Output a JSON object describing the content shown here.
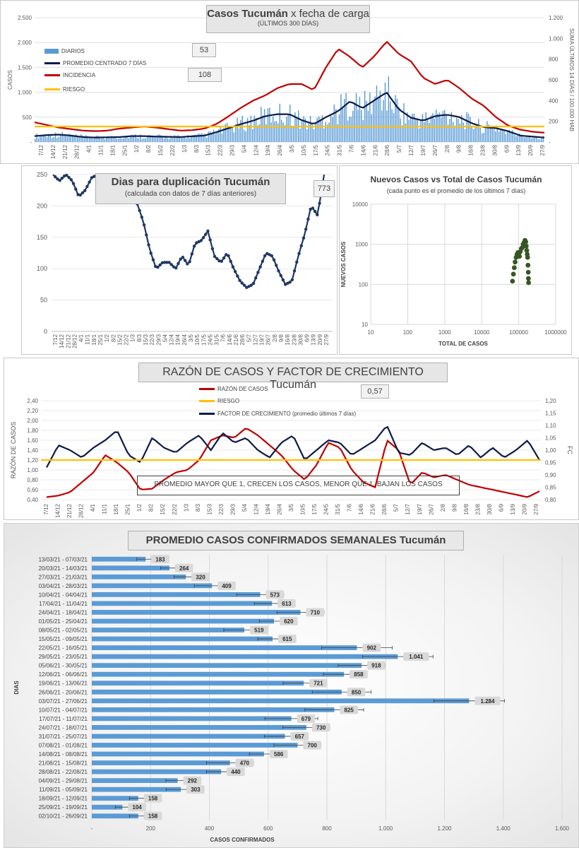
{
  "panel1": {
    "title_main": "Casos Tucumán",
    "title_rest": "x fecha de carga",
    "subtitle": "(ÚLTIMOS 300 DÍAS)",
    "ylabel_left": "CASOS",
    "ylabel_right": "SUMA ÚLTIMOS 14 DÍAS / 100.000 HAB",
    "value_box_1": "53",
    "value_box_2": "108",
    "legend": [
      {
        "label": "DIARIOS",
        "color": "#5b9bd5"
      },
      {
        "label": "PROMEDIO CENTRADO 7 DÍAS",
        "color": "#0d1b4a"
      },
      {
        "label": "INCIDENCIA",
        "color": "#c00000"
      },
      {
        "label": "RIESGO",
        "color": "#ffc000"
      }
    ]
  },
  "panel2": {
    "title_main": "Dias para duplicación Tucumán",
    "subtitle": "(calculada con datos de 7 días anteriores)",
    "value_box": "773"
  },
  "panel3": {
    "title_main": "Nuevos Casos vs Total de Casos Tucumán",
    "subtitle": "(cada punto es el promedio de los últimos 7 días)"
  },
  "panel4": {
    "title_main": "RAZÓN DE CASOS Y FACTOR DE CRECIMIENTO Tucumán",
    "value_box": "0,57",
    "ylabel_left": "RAZÓN DE CASOS",
    "ylabel_right": "FC",
    "note": "PROMEDIO MAYOR QUE 1, CRECEN LOS CASOS, MENOR QUE 1, BAJAN LOS CASOS",
    "legend": [
      {
        "label": "RAZÓN DE CASOS",
        "color": "#c00000"
      },
      {
        "label": "RIESGO",
        "color": "#ffc000"
      },
      {
        "label": "FACTOR DE CRECIMIENTO (promedio últimos 7 días)",
        "color": "#0d1b4a"
      }
    ]
  },
  "panel5": {
    "title": "PROMEDIO CASOS CONFIRMADOS SEMANALES Tucumán"
  },
  "chart_data": [
    {
      "type": "bar",
      "title": "Casos Tucumán x fecha de carga",
      "subtitle": "(ÚLTIMOS 300 DÍAS)",
      "ylabel": "CASOS",
      "y2label": "SUMA ÚLTIMOS 14 DÍAS / 100.000 HAB",
      "ylim": [
        0,
        2500
      ],
      "yticks": [
        "-",
        "500",
        "1.000",
        "1.500",
        "2.000",
        "2.500"
      ],
      "y2lim": [
        0,
        1200
      ],
      "y2ticks": [
        "-",
        "200",
        "400",
        "600",
        "800",
        "1.000",
        "1.200"
      ],
      "x_tick_labels": [
        "7/12",
        "14/12",
        "21/12",
        "28/12",
        "4/1",
        "11/1",
        "18/1",
        "25/1",
        "1/2",
        "8/2",
        "15/2",
        "22/2",
        "1/3",
        "8/3",
        "15/3",
        "22/3",
        "29/3",
        "5/4",
        "12/4",
        "19/4",
        "26/4",
        "3/5",
        "10/5",
        "17/5",
        "24/5",
        "31/5",
        "7/6",
        "14/6",
        "21/6",
        "28/6",
        "5/7",
        "12/7",
        "19/7",
        "26/7",
        "2/8",
        "9/8",
        "16/8",
        "23/8",
        "30/8",
        "6/9",
        "13/9",
        "20/9",
        "27/9"
      ],
      "series": [
        {
          "name": "PROMEDIO CENTRADO 7 DÍAS",
          "axis": "left",
          "values": [
            120,
            140,
            150,
            130,
            100,
            90,
            95,
            100,
            120,
            120,
            110,
            105,
            100,
            115,
            130,
            200,
            280,
            360,
            430,
            520,
            560,
            560,
            440,
            360,
            500,
            620,
            820,
            680,
            840,
            1000,
            660,
            490,
            430,
            520,
            550,
            500,
            380,
            300,
            280,
            220,
            130,
            110,
            90
          ]
        },
        {
          "name": "INCIDENCIA",
          "axis": "right",
          "values": [
            190,
            165,
            140,
            125,
            110,
            105,
            110,
            130,
            140,
            150,
            140,
            125,
            110,
            115,
            130,
            175,
            250,
            330,
            400,
            450,
            520,
            560,
            560,
            500,
            720,
            900,
            820,
            720,
            830,
            970,
            850,
            780,
            620,
            560,
            600,
            520,
            420,
            350,
            240,
            160,
            120,
            100,
            90
          ]
        },
        {
          "name": "RIESGO",
          "axis": "right",
          "value": 150
        }
      ]
    },
    {
      "type": "line",
      "title": "Dias para duplicación Tucumán",
      "subtitle": "(calculada con datos de 7 días anteriores)",
      "ylim": [
        0,
        250
      ],
      "yticks": [
        0,
        50,
        100,
        150,
        200,
        250
      ],
      "x_tick_labels": [
        "7/12",
        "14/12",
        "21/12",
        "28/12",
        "4/1",
        "11/1",
        "18/1",
        "25/1",
        "1/2",
        "8/2",
        "15/2",
        "22/2",
        "1/3",
        "8/3",
        "15/3",
        "22/3",
        "29/3",
        "5/4",
        "12/4",
        "19/4",
        "26/4",
        "3/5",
        "10/5",
        "17/5",
        "24/5",
        "31/5",
        "7/6",
        "14/6",
        "21/6",
        "28/6",
        "5/7",
        "12/7",
        "19/7",
        "26/7",
        "2/8",
        "9/8",
        "16/8",
        "23/8",
        "30/8",
        "6/9",
        "13/9",
        "20/9",
        "27/9"
      ],
      "values": [
        250,
        240,
        250,
        240,
        215,
        225,
        245,
        250,
        250,
        250,
        250,
        250,
        230,
        205,
        175,
        130,
        100,
        110,
        110,
        100,
        120,
        105,
        140,
        145,
        160,
        120,
        110,
        125,
        100,
        80,
        70,
        75,
        100,
        125,
        120,
        95,
        75,
        80,
        120,
        155,
        200,
        185,
        250
      ]
    },
    {
      "type": "scatter",
      "title": "Nuevos Casos vs Total de Casos Tucumán",
      "subtitle": "(cada punto es el promedio de los últimos 7 días)",
      "xlabel": "TOTAL DE CASOS",
      "ylabel": "NUEVOS CASOS",
      "x_scale": "log",
      "y_scale": "log",
      "xlim": [
        10,
        1000000
      ],
      "ylim": [
        10,
        10000
      ],
      "xticks": [
        10,
        100,
        1000,
        10000,
        100000,
        1000000
      ],
      "yticks": [
        10,
        100,
        1000,
        10000
      ],
      "points": [
        [
          68000,
          120
        ],
        [
          72000,
          180
        ],
        [
          76000,
          260
        ],
        [
          80000,
          360
        ],
        [
          85000,
          470
        ],
        [
          90000,
          560
        ],
        [
          95000,
          620
        ],
        [
          100000,
          560
        ],
        [
          105000,
          500
        ],
        [
          110000,
          650
        ],
        [
          118000,
          780
        ],
        [
          125000,
          820
        ],
        [
          132000,
          1000
        ],
        [
          140000,
          1100
        ],
        [
          148000,
          1250
        ],
        [
          155000,
          1150
        ],
        [
          160000,
          900
        ],
        [
          165000,
          700
        ],
        [
          170000,
          560
        ],
        [
          174000,
          470
        ],
        [
          178000,
          300
        ],
        [
          181000,
          200
        ],
        [
          183000,
          140
        ],
        [
          185000,
          110
        ]
      ]
    },
    {
      "type": "line",
      "title": "RAZÓN DE CASOS Y FACTOR DE CRECIMIENTO Tucumán",
      "ylabel": "RAZÓN DE CASOS",
      "y2label": "FC",
      "ylim": [
        0.4,
        2.4
      ],
      "yticks": [
        "0,40",
        "0,60",
        "0,80",
        "1,00",
        "1,20",
        "1,40",
        "1,60",
        "1,80",
        "2,00",
        "2,20",
        "2,40"
      ],
      "y2lim": [
        0.8,
        1.2
      ],
      "y2ticks": [
        "0,80",
        "0,85",
        "0,90",
        "0,95",
        "1,00",
        "1,05",
        "1,10",
        "1,15",
        "1,20"
      ],
      "x_tick_labels": [
        "7/12",
        "14/12",
        "21/12",
        "28/12",
        "4/1",
        "11/1",
        "18/1",
        "25/1",
        "1/2",
        "8/2",
        "15/2",
        "22/2",
        "1/3",
        "8/3",
        "15/3",
        "22/3",
        "29/3",
        "5/4",
        "12/4",
        "19/4",
        "26/4",
        "3/5",
        "10/5",
        "17/5",
        "24/5",
        "31/5",
        "7/6",
        "14/6",
        "21/6",
        "28/6",
        "5/7",
        "12/7",
        "19/7",
        "26/7",
        "2/8",
        "9/8",
        "16/8",
        "23/8",
        "30/8",
        "6/9",
        "13/9",
        "20/9",
        "27/9"
      ],
      "series": [
        {
          "name": "RAZÓN DE CASOS",
          "axis": "left",
          "values": [
            0.45,
            0.48,
            0.55,
            0.75,
            0.95,
            1.3,
            1.15,
            0.95,
            0.6,
            0.62,
            0.8,
            0.95,
            1.0,
            1.2,
            1.6,
            1.7,
            1.65,
            1.85,
            1.7,
            1.5,
            1.3,
            1.0,
            0.8,
            1.1,
            1.55,
            1.45,
            1.0,
            0.75,
            0.65,
            1.6,
            1.4,
            0.7,
            0.95,
            0.85,
            0.9,
            0.8,
            0.7,
            0.65,
            0.6,
            0.55,
            0.5,
            0.45,
            0.57
          ]
        },
        {
          "name": "FACTOR DE CRECIMIENTO (promedio últimos 7 días)",
          "axis": "right",
          "values": [
            0.93,
            1.02,
            1.0,
            0.97,
            1.01,
            1.04,
            1.08,
            0.98,
            0.95,
            1.05,
            1.01,
            0.99,
            1.03,
            1.06,
            1.0,
            1.07,
            1.03,
            1.05,
            1.0,
            0.97,
            1.03,
            1.06,
            0.96,
            1.0,
            1.04,
            1.03,
            0.98,
            1.01,
            1.04,
            1.1,
            0.99,
            0.98,
            1.03,
            1.0,
            1.01,
            0.98,
            1.02,
            0.97,
            1.01,
            0.97,
            1.0,
            1.04,
            0.96
          ]
        },
        {
          "name": "RIESGO",
          "axis": "left",
          "value": 1.2
        }
      ]
    },
    {
      "type": "bar",
      "orientation": "horizontal",
      "title": "PROMEDIO CASOS CONFIRMADOS SEMANALES Tucumán",
      "xlabel": "CASOS CONFIRMADOS",
      "ylabel": "DIAS",
      "xlim": [
        0,
        1600
      ],
      "xticks": [
        "-",
        "200",
        "400",
        "600",
        "800",
        "1.000",
        "1.200",
        "1.400",
        "1.600"
      ],
      "categories": [
        "13/03/21 - 07/03/21",
        "20/03/21 - 14/03/21",
        "27/03/21 - 21/03/21",
        "03/04/21 - 28/03/21",
        "10/04/21 - 04/04/21",
        "17/04/21 - 11/04/21",
        "24/04/21 - 18/04/21",
        "01/05/21 - 25/04/21",
        "08/05/21 - 02/05/21",
        "15/05/21 - 09/05/21",
        "22/05/21 - 16/05/21",
        "29/05/21 - 23/05/21",
        "05/06/21 - 30/05/21",
        "12/06/21 - 06/06/21",
        "19/06/21 - 13/06/21",
        "26/06/21 - 20/06/21",
        "03/07/21 - 27/06/21",
        "10/07/21 - 04/07/21",
        "17/07/21 - 11/07/21",
        "24/07/21 - 18/07/21",
        "31/07/21 - 25/07/21",
        "07/08/21 - 01/08/21",
        "14/08/21 - 08/08/21",
        "21/08/21 - 15/08/21",
        "28/08/21 - 22/08/21",
        "04/09/21 - 29/08/21",
        "11/09/21 - 05/09/21",
        "18/09/21 - 12/09/21",
        "25/09/21 - 19/09/21",
        "02/10/21 - 26/09/21"
      ],
      "values": [
        183,
        264,
        320,
        409,
        573,
        613,
        710,
        620,
        519,
        615,
        902,
        1041,
        918,
        858,
        721,
        850,
        1284,
        825,
        679,
        730,
        657,
        700,
        586,
        470,
        440,
        292,
        303,
        158,
        104,
        158
      ],
      "labels": [
        "183",
        "264",
        "320",
        "409",
        "573",
        "613",
        "710",
        "620",
        "519",
        "615",
        "902",
        "1.041",
        "918",
        "858",
        "721",
        "850",
        "1.284",
        "825",
        "679",
        "730",
        "657",
        "700",
        "586",
        "470",
        "440",
        "292",
        "303",
        "158",
        "104",
        "158"
      ],
      "error": [
        15,
        15,
        20,
        30,
        40,
        30,
        40,
        25,
        35,
        25,
        60,
        60,
        40,
        35,
        35,
        50,
        60,
        50,
        45,
        40,
        35,
        40,
        25,
        40,
        25,
        20,
        25,
        15,
        12,
        15
      ]
    }
  ]
}
